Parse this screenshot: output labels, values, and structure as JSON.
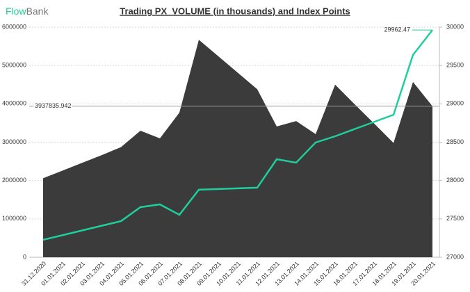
{
  "chart_data": {
    "type": "area",
    "title": "Trading PX_VOLUME (in thousands) and Index Points",
    "logo": {
      "first": "Flow",
      "second": "Bank"
    },
    "categories": [
      "31.12.2020",
      "01.01.2021",
      "02.01.2021",
      "03.01.2021",
      "04.01.2021",
      "05.01.2021",
      "06.01.2021",
      "07.01.2021",
      "08.01.2021",
      "09.01.2021",
      "10.01.2021",
      "11.01.2021",
      "12.01.2021",
      "13.01.2021",
      "14.01.2021",
      "15.01.2021",
      "16.01.2021",
      "17.01.2021",
      "18.01.2021",
      "19.01.2021",
      "20.01.2021"
    ],
    "series": [
      {
        "color": "#3b3b3b",
        "values": [
          2060000,
          2260000,
          2460000,
          2660000,
          2870000,
          3300000,
          3100000,
          3770000,
          5670000,
          5240000,
          4810000,
          4380000,
          3410000,
          3550000,
          3210000,
          4500000,
          3990000,
          3490000,
          2980000,
          4570000,
          3937835.942
        ]
      },
      {
        "type": "line",
        "axis": "y2",
        "color": "#1ecf9b",
        "values": [
          27227,
          27288,
          27349,
          27410,
          27471,
          27653,
          27689,
          27553,
          27880,
          27889,
          27898,
          27907,
          28278,
          28233,
          28496,
          28577,
          28671,
          28764,
          28858,
          29638,
          29962.47
        ]
      }
    ],
    "ylim": [
      0,
      6000000
    ],
    "yticks": [
      0,
      1000000,
      2000000,
      3000000,
      4000000,
      5000000,
      6000000
    ],
    "y2lim": [
      27000,
      30000
    ],
    "y2ticks": [
      27000,
      27500,
      28000,
      28500,
      29000,
      29500,
      30000
    ],
    "grid": true
  }
}
